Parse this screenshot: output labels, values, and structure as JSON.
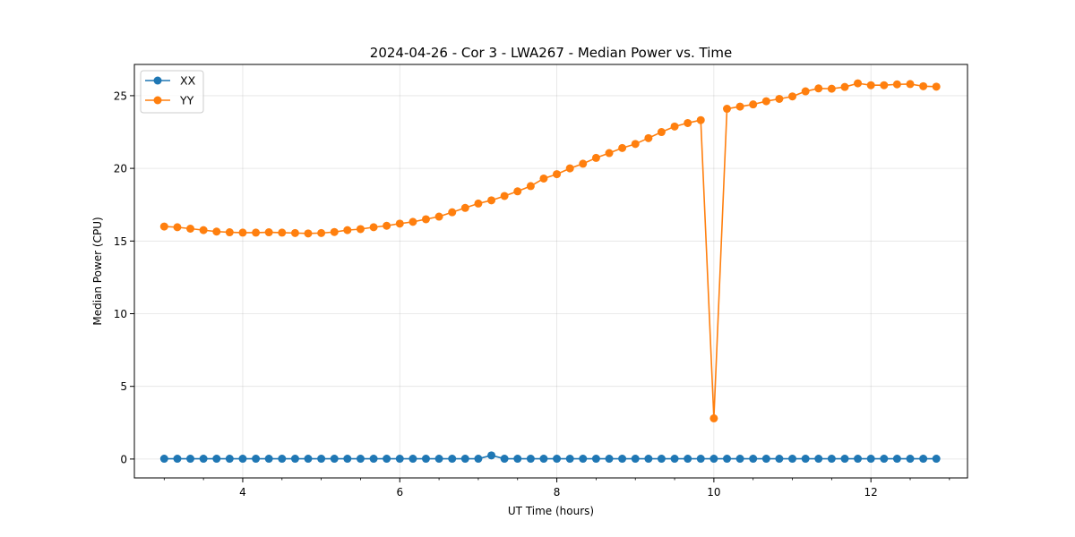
{
  "chart_data": {
    "type": "line",
    "title": "2024-04-26 - Cor 3 - LWA267 - Median Power vs. Time",
    "xlabel": "UT Time (hours)",
    "ylabel": "Median Power (CPU)",
    "xlim": [
      2.62,
      13.23
    ],
    "ylim": [
      -1.3,
      27.15
    ],
    "xticks": [
      4,
      6,
      8,
      10,
      12
    ],
    "xtick_labels": [
      "4",
      "6",
      "8",
      "10",
      "12"
    ],
    "xminor_step": 0.5,
    "yticks": [
      0,
      5,
      10,
      15,
      20,
      25
    ],
    "ytick_labels": [
      "0",
      "5",
      "10",
      "15",
      "20",
      "25"
    ],
    "grid": true,
    "legend_position": "top-left",
    "x": [
      3.0,
      3.167,
      3.333,
      3.5,
      3.667,
      3.833,
      4.0,
      4.167,
      4.333,
      4.5,
      4.667,
      4.833,
      5.0,
      5.167,
      5.333,
      5.5,
      5.667,
      5.833,
      6.0,
      6.167,
      6.333,
      6.5,
      6.667,
      6.833,
      7.0,
      7.167,
      7.333,
      7.5,
      7.667,
      7.833,
      8.0,
      8.167,
      8.333,
      8.5,
      8.667,
      8.833,
      9.0,
      9.167,
      9.333,
      9.5,
      9.667,
      9.833,
      10.0,
      10.167,
      10.333,
      10.5,
      10.667,
      10.833,
      11.0,
      11.167,
      11.333,
      11.5,
      11.667,
      11.833,
      12.0,
      12.167,
      12.333,
      12.5,
      12.667,
      12.833
    ],
    "series": [
      {
        "name": "XX",
        "color": "#1f77b4",
        "values": [
          0.02,
          0.02,
          0.02,
          0.02,
          0.02,
          0.02,
          0.02,
          0.02,
          0.02,
          0.02,
          0.02,
          0.02,
          0.02,
          0.02,
          0.02,
          0.02,
          0.02,
          0.02,
          0.02,
          0.02,
          0.02,
          0.02,
          0.02,
          0.02,
          0.02,
          0.25,
          0.02,
          0.02,
          0.02,
          0.02,
          0.02,
          0.02,
          0.02,
          0.02,
          0.02,
          0.02,
          0.02,
          0.02,
          0.02,
          0.02,
          0.02,
          0.02,
          0.02,
          0.02,
          0.02,
          0.02,
          0.02,
          0.02,
          0.02,
          0.02,
          0.02,
          0.02,
          0.02,
          0.02,
          0.02,
          0.02,
          0.02,
          0.02,
          0.02,
          0.02
        ]
      },
      {
        "name": "YY",
        "color": "#ff7f0e",
        "values": [
          16.0,
          15.95,
          15.85,
          15.75,
          15.65,
          15.6,
          15.58,
          15.58,
          15.6,
          15.58,
          15.55,
          15.52,
          15.55,
          15.62,
          15.75,
          15.82,
          15.95,
          16.05,
          16.2,
          16.32,
          16.5,
          16.68,
          16.98,
          17.28,
          17.58,
          17.8,
          18.1,
          18.42,
          18.78,
          19.3,
          19.6,
          20.0,
          20.32,
          20.72,
          21.05,
          21.4,
          21.68,
          22.08,
          22.5,
          22.88,
          23.12,
          23.32,
          2.8,
          24.1,
          24.25,
          24.4,
          24.62,
          24.78,
          24.95,
          25.3,
          25.5,
          25.48,
          25.6,
          25.85,
          25.72,
          25.72,
          25.78,
          25.8,
          25.65,
          25.62
        ]
      }
    ]
  }
}
